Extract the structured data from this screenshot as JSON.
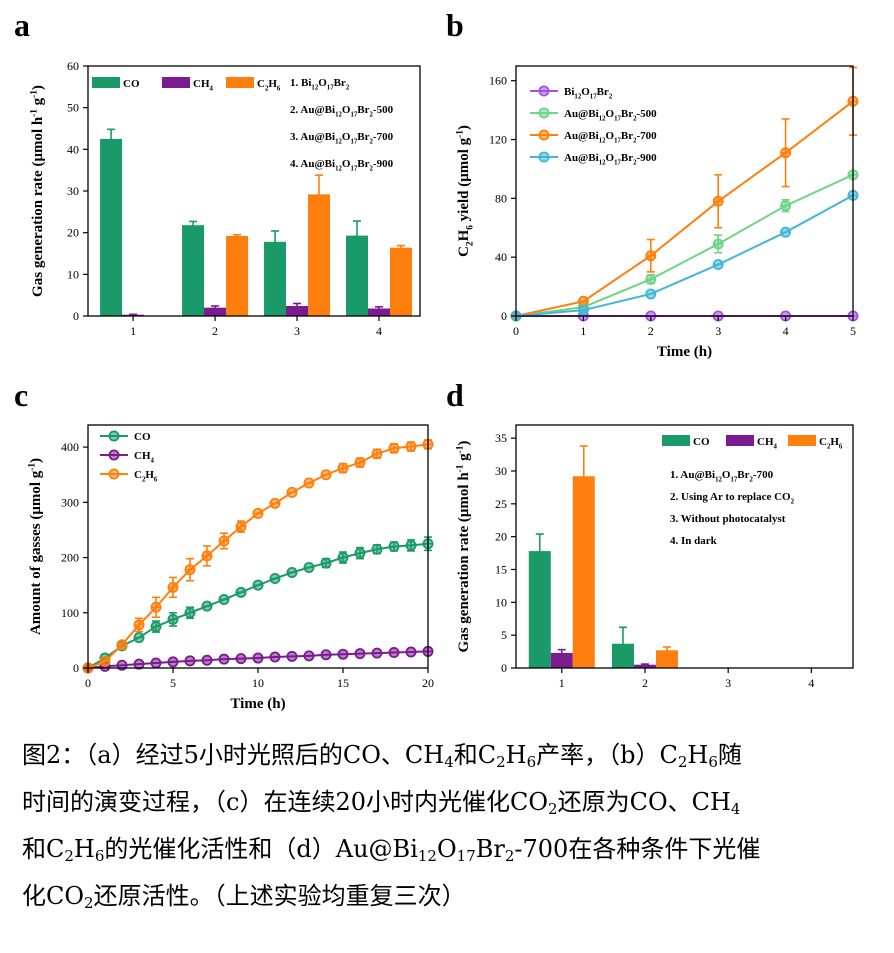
{
  "colors": {
    "co": "#1a9a68",
    "ch4": "#7b1b8f",
    "c2h6": "#ff7f0e",
    "bi": "#a64fe0",
    "p500": "#6fd488",
    "p700": "#ff7f0e",
    "p900": "#41b6d6"
  },
  "panels": [
    {
      "label": "a"
    },
    {
      "label": "b"
    },
    {
      "label": "c"
    },
    {
      "label": "d"
    }
  ],
  "caption": {
    "line1": [
      {
        "t": "图2：（a）经过5小时光照后的CO、CH"
      },
      {
        "sub": "4"
      },
      {
        "t": "和C"
      },
      {
        "sub": "2"
      },
      {
        "t": "H"
      },
      {
        "sub": "6"
      },
      {
        "t": "产率，（b）C"
      },
      {
        "sub": "2"
      },
      {
        "t": "H"
      },
      {
        "sub": "6"
      },
      {
        "t": "随"
      }
    ],
    "line2": [
      {
        "t": "时间的演变过程，（c）在连续20小时内光催化CO"
      },
      {
        "sub": "2"
      },
      {
        "t": "还原为CO、CH"
      },
      {
        "sub": "4"
      }
    ],
    "line3": [
      {
        "t": "和C"
      },
      {
        "sub": "2"
      },
      {
        "t": "H"
      },
      {
        "sub": "6"
      },
      {
        "t": "的光催化活性和（d）Au@Bi"
      },
      {
        "sub": "12"
      },
      {
        "t": "O"
      },
      {
        "sub": "17"
      },
      {
        "t": "Br"
      },
      {
        "sub": "2"
      },
      {
        "t": "-700在各种条件下光催"
      }
    ],
    "line4": [
      {
        "t": "化CO"
      },
      {
        "sub": "2"
      },
      {
        "t": "还原活性。（上述实验均重复三次）"
      }
    ]
  },
  "chart_data": [
    {
      "panel": "a",
      "type": "bar",
      "ylabel": [
        {
          "t": "Gas generation rate (μmol h"
        },
        {
          "sup": "-1"
        },
        {
          "t": " g"
        },
        {
          "sup": "-1"
        },
        {
          "t": ")"
        }
      ],
      "xlabel": "",
      "categories": [
        "1",
        "2",
        "3",
        "4"
      ],
      "ylim": [
        0,
        60
      ],
      "yticks": [
        0,
        10,
        20,
        30,
        40,
        50,
        60
      ],
      "series": [
        {
          "name": [
            {
              "t": "CO"
            }
          ],
          "color_key": "co",
          "values": [
            42.5,
            21.8,
            17.8,
            19.3
          ],
          "errors": [
            2.3,
            0.9,
            2.6,
            3.5
          ]
        },
        {
          "name": [
            {
              "t": "CH"
            },
            {
              "sub": "4"
            }
          ],
          "color_key": "ch4",
          "values": [
            0.3,
            2.0,
            2.4,
            1.8
          ],
          "errors": [
            0.1,
            0.4,
            0.6,
            0.4
          ]
        },
        {
          "name": [
            {
              "t": "C"
            },
            {
              "sub": "2"
            },
            {
              "t": "H"
            },
            {
              "sub": "6"
            }
          ],
          "color_key": "c2h6",
          "values": [
            0,
            19.2,
            29.2,
            16.4
          ],
          "errors": [
            0,
            0.3,
            4.6,
            0.5
          ]
        }
      ],
      "notes": [
        [
          {
            "t": "1. Bi"
          },
          {
            "sub": "12"
          },
          {
            "t": "O"
          },
          {
            "sub": "17"
          },
          {
            "t": "Br"
          },
          {
            "sub": "2"
          }
        ],
        [
          {
            "t": "2. Au@Bi"
          },
          {
            "sub": "12"
          },
          {
            "t": "O"
          },
          {
            "sub": "17"
          },
          {
            "t": "Br"
          },
          {
            "sub": "2"
          },
          {
            "t": "-500"
          }
        ],
        [
          {
            "t": "3. Au@Bi"
          },
          {
            "sub": "12"
          },
          {
            "t": "O"
          },
          {
            "sub": "17"
          },
          {
            "t": "Br"
          },
          {
            "sub": "2"
          },
          {
            "t": "-700"
          }
        ],
        [
          {
            "t": "4. Au@Bi"
          },
          {
            "sub": "12"
          },
          {
            "t": "O"
          },
          {
            "sub": "17"
          },
          {
            "t": "Br"
          },
          {
            "sub": "2"
          },
          {
            "t": "-900"
          }
        ]
      ]
    },
    {
      "panel": "b",
      "type": "line",
      "ylabel": [
        {
          "t": "C"
        },
        {
          "sub": "2"
        },
        {
          "t": "H"
        },
        {
          "sub": "6"
        },
        {
          "t": " yield (μmol g"
        },
        {
          "sup": "-1"
        },
        {
          "t": ")"
        }
      ],
      "xlabel": [
        {
          "t": "Time (h)"
        }
      ],
      "xlim": [
        0,
        5
      ],
      "ylim": [
        0,
        170
      ],
      "xticks": [
        0,
        1,
        2,
        3,
        4,
        5
      ],
      "yticks": [
        0,
        40,
        80,
        120,
        160
      ],
      "x": [
        0,
        1,
        2,
        3,
        4,
        5
      ],
      "series": [
        {
          "name": [
            {
              "t": "Bi"
            },
            {
              "sub": "12"
            },
            {
              "t": "O"
            },
            {
              "sub": "17"
            },
            {
              "t": "Br"
            },
            {
              "sub": "2"
            }
          ],
          "color_key": "bi",
          "values": [
            0,
            0,
            0,
            0,
            0,
            0
          ],
          "errors": [
            0,
            0,
            0,
            0,
            0,
            0
          ]
        },
        {
          "name": [
            {
              "t": "Au@Bi"
            },
            {
              "sub": "12"
            },
            {
              "t": "O"
            },
            {
              "sub": "17"
            },
            {
              "t": "Br"
            },
            {
              "sub": "2"
            },
            {
              "t": "-500"
            }
          ],
          "color_key": "p500",
          "values": [
            0,
            6,
            25,
            49,
            75,
            96
          ],
          "errors": [
            0,
            1,
            3,
            6,
            4,
            2
          ]
        },
        {
          "name": [
            {
              "t": "Au@Bi"
            },
            {
              "sub": "12"
            },
            {
              "t": "O"
            },
            {
              "sub": "17"
            },
            {
              "t": "Br"
            },
            {
              "sub": "2"
            },
            {
              "t": "-700"
            }
          ],
          "color_key": "p700",
          "values": [
            0,
            10,
            41,
            78,
            111,
            146
          ],
          "errors": [
            0,
            1,
            11,
            18,
            23,
            23
          ]
        },
        {
          "name": [
            {
              "t": "Au@Bi"
            },
            {
              "sub": "12"
            },
            {
              "t": "O"
            },
            {
              "sub": "17"
            },
            {
              "t": "Br"
            },
            {
              "sub": "2"
            },
            {
              "t": "-900"
            }
          ],
          "color_key": "p900",
          "values": [
            0,
            4,
            15,
            35,
            57,
            82
          ],
          "errors": [
            0,
            1,
            1,
            2,
            2,
            2
          ]
        }
      ]
    },
    {
      "panel": "c",
      "type": "line",
      "ylabel": [
        {
          "t": "Amount of gasses (μmol g"
        },
        {
          "sup": "-1"
        },
        {
          "t": ")"
        }
      ],
      "xlabel": [
        {
          "t": "Time (h)"
        }
      ],
      "xlim": [
        0,
        20
      ],
      "ylim": [
        0,
        440
      ],
      "xticks": [
        0,
        5,
        10,
        15,
        20
      ],
      "yticks": [
        0,
        100,
        200,
        300,
        400
      ],
      "x": [
        0,
        1,
        2,
        3,
        4,
        5,
        6,
        7,
        8,
        9,
        10,
        11,
        12,
        13,
        14,
        15,
        16,
        17,
        18,
        19,
        20
      ],
      "series": [
        {
          "name": [
            {
              "t": "CO"
            }
          ],
          "color_key": "co",
          "values": [
            0,
            18,
            40,
            55,
            75,
            88,
            100,
            112,
            124,
            137,
            150,
            162,
            173,
            182,
            190,
            200,
            208,
            215,
            220,
            222,
            225
          ],
          "errors": [
            2,
            3,
            3,
            5,
            10,
            12,
            10,
            5,
            5,
            5,
            5,
            5,
            6,
            6,
            8,
            10,
            10,
            8,
            8,
            10,
            12
          ]
        },
        {
          "name": [
            {
              "t": "CH"
            },
            {
              "sub": "4"
            }
          ],
          "color_key": "ch4",
          "values": [
            0,
            3,
            5,
            7,
            9,
            11,
            13,
            14,
            16,
            17,
            18,
            20,
            21,
            22,
            24,
            25,
            26,
            27,
            28,
            29,
            30
          ],
          "errors": [
            1,
            1,
            1,
            1,
            1,
            1,
            2,
            2,
            2,
            2,
            2,
            2,
            2,
            2,
            2,
            2,
            2,
            2,
            3,
            3,
            3
          ]
        },
        {
          "name": [
            {
              "t": "C"
            },
            {
              "sub": "2"
            },
            {
              "t": "H"
            },
            {
              "sub": "6"
            }
          ],
          "color_key": "c2h6",
          "values": [
            0,
            12,
            42,
            78,
            110,
            146,
            178,
            203,
            230,
            256,
            280,
            298,
            318,
            335,
            350,
            362,
            372,
            388,
            398,
            401,
            405
          ],
          "errors": [
            2,
            4,
            5,
            12,
            18,
            18,
            20,
            18,
            14,
            10,
            6,
            6,
            6,
            6,
            6,
            8,
            8,
            8,
            8,
            8,
            8
          ]
        }
      ]
    },
    {
      "panel": "d",
      "type": "bar",
      "ylabel": [
        {
          "t": "Gas generation rate (μmol h"
        },
        {
          "sup": "-1"
        },
        {
          "t": " g"
        },
        {
          "sup": "-1"
        },
        {
          "t": ")"
        }
      ],
      "xlabel": "",
      "categories": [
        "1",
        "2",
        "3",
        "4"
      ],
      "ylim": [
        0,
        37
      ],
      "yticks": [
        0,
        5,
        10,
        15,
        20,
        25,
        30,
        35
      ],
      "series": [
        {
          "name": [
            {
              "t": "CO"
            }
          ],
          "color_key": "co",
          "values": [
            17.8,
            3.7,
            0,
            0
          ],
          "errors": [
            2.6,
            2.5,
            0,
            0
          ]
        },
        {
          "name": [
            {
              "t": "CH"
            },
            {
              "sub": "4"
            }
          ],
          "color_key": "ch4",
          "values": [
            2.3,
            0.5,
            0,
            0
          ],
          "errors": [
            0.5,
            0.1,
            0,
            0
          ]
        },
        {
          "name": [
            {
              "t": "C"
            },
            {
              "sub": "2"
            },
            {
              "t": "H"
            },
            {
              "sub": "6"
            }
          ],
          "color_key": "c2h6",
          "values": [
            29.2,
            2.7,
            0,
            0
          ],
          "errors": [
            4.6,
            0.5,
            0,
            0
          ]
        }
      ],
      "notes": [
        [
          {
            "t": "1. Au@Bi"
          },
          {
            "sub": "12"
          },
          {
            "t": "O"
          },
          {
            "sub": "17"
          },
          {
            "t": "Br"
          },
          {
            "sub": "2"
          },
          {
            "t": "-700"
          }
        ],
        [
          {
            "t": "2. Using Ar to replace CO"
          },
          {
            "sub": "2"
          }
        ],
        [
          {
            "t": "3. Without photocatalyst"
          }
        ],
        [
          {
            "t": "4. In dark"
          }
        ]
      ]
    }
  ]
}
